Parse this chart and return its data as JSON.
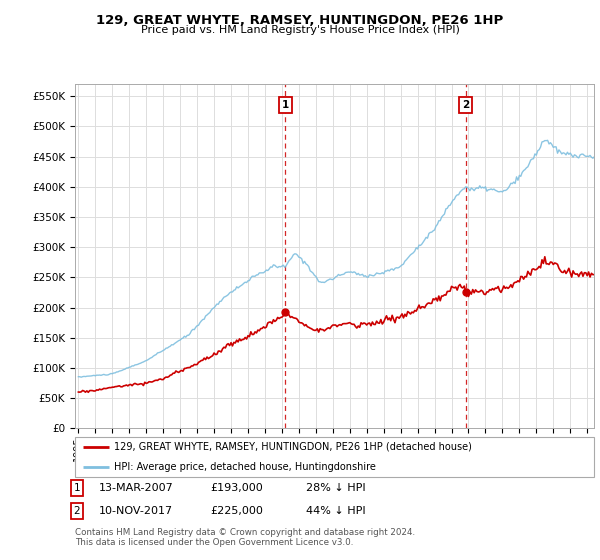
{
  "title": "129, GREAT WHYTE, RAMSEY, HUNTINGDON, PE26 1HP",
  "subtitle": "Price paid vs. HM Land Registry's House Price Index (HPI)",
  "background_color": "#ffffff",
  "plot_bg_color": "#ffffff",
  "grid_color": "#dddddd",
  "hpi_color": "#7fbfdf",
  "price_color": "#cc0000",
  "transaction1_date": "13-MAR-2007",
  "transaction1_price": 193000,
  "transaction1_year": 2007.2,
  "transaction1_label": "28% ↓ HPI",
  "transaction2_date": "10-NOV-2017",
  "transaction2_price": 225000,
  "transaction2_year": 2017.85,
  "transaction2_label": "44% ↓ HPI",
  "legend_label1": "129, GREAT WHYTE, RAMSEY, HUNTINGDON, PE26 1HP (detached house)",
  "legend_label2": "HPI: Average price, detached house, Huntingdonshire",
  "footnote1": "Contains HM Land Registry data © Crown copyright and database right 2024.",
  "footnote2": "This data is licensed under the Open Government Licence v3.0.",
  "ylim": [
    0,
    570000
  ],
  "yticks": [
    0,
    50000,
    100000,
    150000,
    200000,
    250000,
    300000,
    350000,
    400000,
    450000,
    500000,
    550000
  ],
  "ytick_labels": [
    "£0",
    "£50K",
    "£100K",
    "£150K",
    "£200K",
    "£250K",
    "£300K",
    "£350K",
    "£400K",
    "£450K",
    "£500K",
    "£550K"
  ],
  "xlim_left": 1994.8,
  "xlim_right": 2025.4
}
